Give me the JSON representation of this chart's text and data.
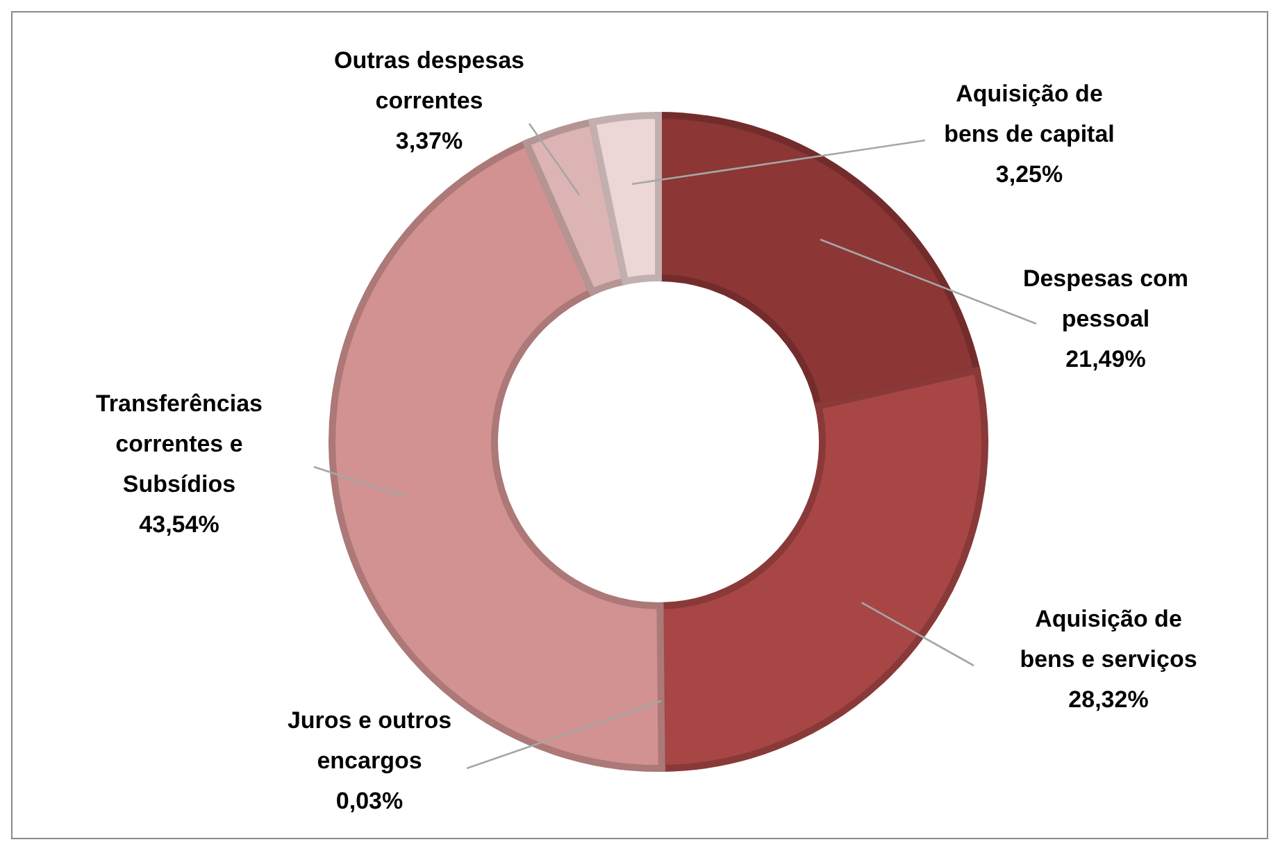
{
  "chart_data": {
    "type": "donut",
    "categories": [
      "Despesas com pessoal",
      "Aquisição de bens e serviços",
      "Juros e outros encargos",
      "Transferências correntes e Subsídios",
      "Outras despesas correntes",
      "Aquisição de bens de capital"
    ],
    "values": [
      21.49,
      28.32,
      0.03,
      43.54,
      3.37,
      3.25
    ],
    "value_labels": [
      "21,49%",
      "28,32%",
      "0,03%",
      "43,54%",
      "3,37%",
      "3,25%"
    ],
    "colors": [
      "#8c3636",
      "#a84646",
      "#b86060",
      "#d29292",
      "#ddb4b4",
      "#ecd6d6"
    ],
    "legend": false
  }
}
